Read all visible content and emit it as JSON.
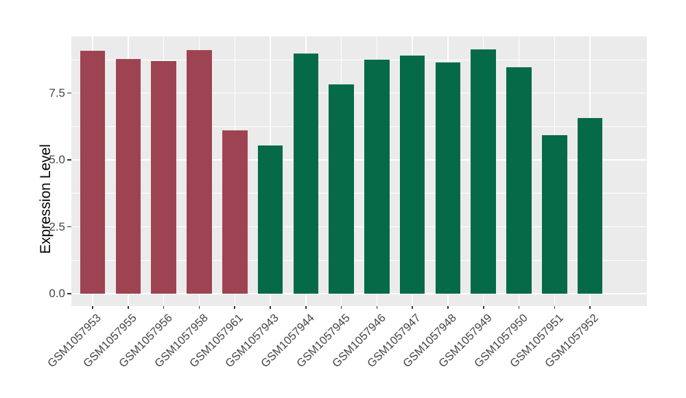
{
  "figure": {
    "background": "#FFFFFF"
  },
  "chart_data": {
    "type": "bar",
    "title": "",
    "xlabel": "",
    "ylabel": "Expression Level",
    "categories": [
      "GSM1057953",
      "GSM1057955",
      "GSM1057956",
      "GSM1057958",
      "GSM1057961",
      "GSM1057943",
      "GSM1057944",
      "GSM1057945",
      "GSM1057946",
      "GSM1057947",
      "GSM1057948",
      "GSM1057949",
      "GSM1057950",
      "GSM1057951",
      "GSM1057952"
    ],
    "values": [
      9.08,
      8.78,
      8.7,
      9.1,
      6.1,
      5.55,
      8.97,
      7.82,
      8.76,
      8.9,
      8.64,
      9.14,
      8.46,
      5.92,
      6.57
    ],
    "bar_colors": [
      "#9E4352",
      "#9E4352",
      "#9E4352",
      "#9E4352",
      "#9E4352",
      "#046A48",
      "#046A48",
      "#046A48",
      "#046A48",
      "#046A48",
      "#046A48",
      "#046A48",
      "#046A48",
      "#046A48",
      "#046A48"
    ],
    "group_colors": {
      "left_group": "#9E4352",
      "right_group": "#046A48"
    },
    "ylim": [
      -0.46,
      9.62
    ],
    "yticks": {
      "values": [
        0.0,
        2.5,
        5.0,
        7.5
      ],
      "labels": [
        "0.0",
        "2.5",
        "5.0",
        "7.5"
      ]
    },
    "yticks_minor": [
      1.25,
      3.75,
      6.25,
      8.75
    ],
    "bar_width_fraction": 0.707,
    "grid": true,
    "legend": false,
    "style": {
      "panel_bg": "#EBEBEB",
      "grid_color": "#FFFFFF",
      "tick_color": "#333333",
      "axis_text_color": "#454545",
      "axis_title_color": "#000000"
    }
  }
}
